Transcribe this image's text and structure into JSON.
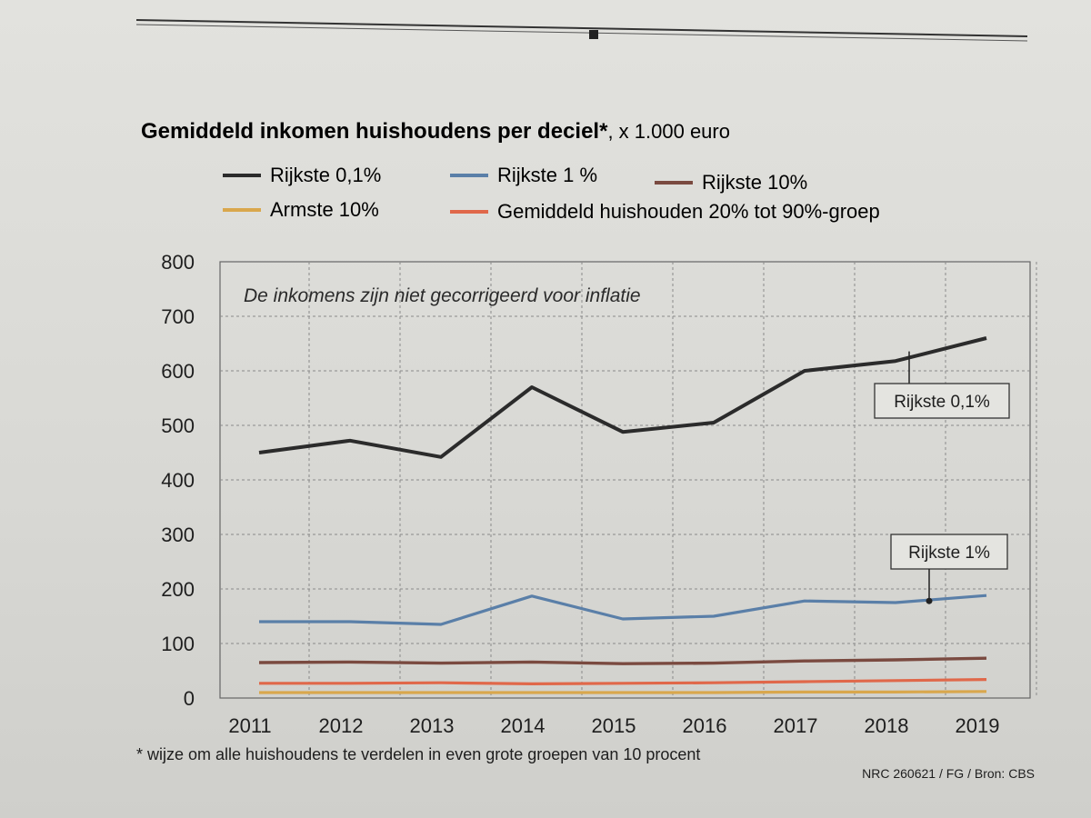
{
  "chart_data": {
    "type": "line",
    "title": "Gemiddeld inkomen huishoudens per deciel*",
    "unit": ", x 1.000 euro",
    "annotation": "De inkomens zijn niet gecorrigeerd voor inflatie",
    "footnote": "* wijze om alle huishoudens te verdelen in even grote groepen van 10 procent",
    "source": "NRC 260621 / FG / Bron: CBS",
    "xlabel": "",
    "ylabel": "",
    "ylim": [
      0,
      800
    ],
    "y_ticks": [
      800,
      700,
      600,
      500,
      400,
      300,
      200,
      100,
      0
    ],
    "x": [
      2011,
      2012,
      2013,
      2014,
      2015,
      2016,
      2017,
      2018,
      2019
    ],
    "series": [
      {
        "name": "Rijkste 0,1%",
        "color": "#2b2b2b",
        "values": [
          450,
          472,
          442,
          570,
          488,
          505,
          600,
          618,
          660
        ]
      },
      {
        "name": "Rijkste 1 %",
        "color": "#5a7fa8",
        "values": [
          140,
          140,
          135,
          187,
          145,
          150,
          178,
          175,
          188
        ]
      },
      {
        "name": "Rijkste 10%",
        "color": "#7a4a40",
        "values": [
          65,
          66,
          64,
          66,
          63,
          64,
          68,
          70,
          73
        ]
      },
      {
        "name": "Armste 10%",
        "color": "#d9a74d",
        "values": [
          10,
          10,
          10,
          10,
          10,
          10,
          11,
          11,
          12
        ]
      },
      {
        "name": "Gemiddeld huishouden 20% tot 90%-groep",
        "color": "#e0684a",
        "values": [
          27,
          27,
          28,
          26,
          27,
          28,
          30,
          32,
          34
        ]
      }
    ],
    "callouts": [
      {
        "label": "Rijkste 0,1%",
        "series": 0
      },
      {
        "label": "Rijkste 1%",
        "series": 1
      }
    ]
  }
}
